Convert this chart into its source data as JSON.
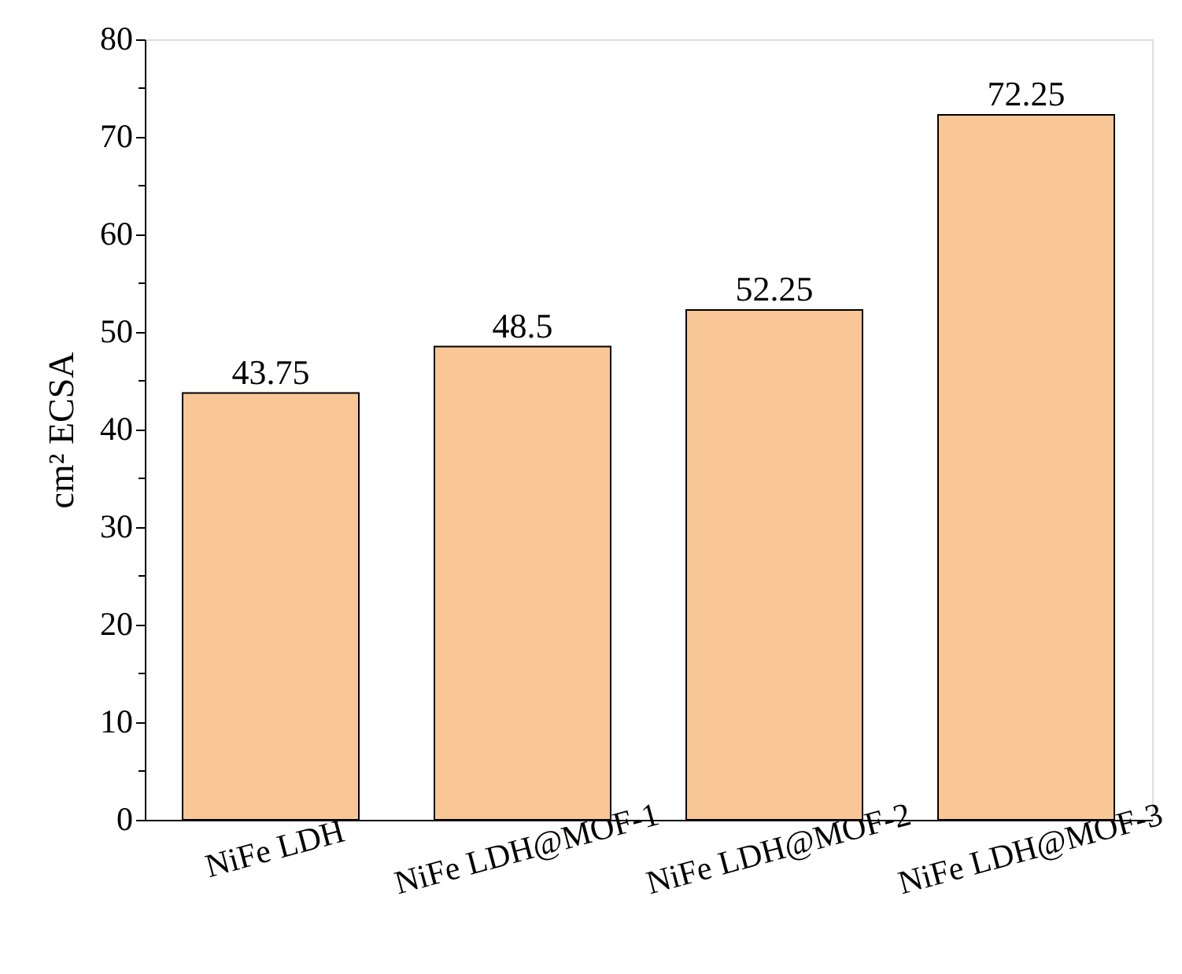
{
  "chart_data": {
    "type": "bar",
    "ylabel": "cm² ECSA",
    "categories": [
      "NiFe LDH",
      "NiFe LDH@MOF-1",
      "NiFe LDH@MOF-2",
      "NiFe LDH@MOF-3"
    ],
    "values": [
      43.75,
      48.5,
      52.25,
      72.25
    ],
    "color": "#f9c696",
    "ylim": [
      0,
      80
    ],
    "yticks": [
      0,
      {
        "value": 5,
        "label": null
      },
      10,
      {
        "value": 15,
        "label": null
      },
      20,
      {
        "value": 25,
        "label": null
      },
      30,
      {
        "value": 35,
        "label": null
      },
      40,
      {
        "value": 45,
        "label": null
      },
      50,
      {
        "value": 55,
        "label": null
      },
      60,
      {
        "value": 65,
        "label": null
      },
      70,
      {
        "value": 75,
        "label": null
      },
      80
    ],
    "data_labels": true,
    "grid": false
  }
}
